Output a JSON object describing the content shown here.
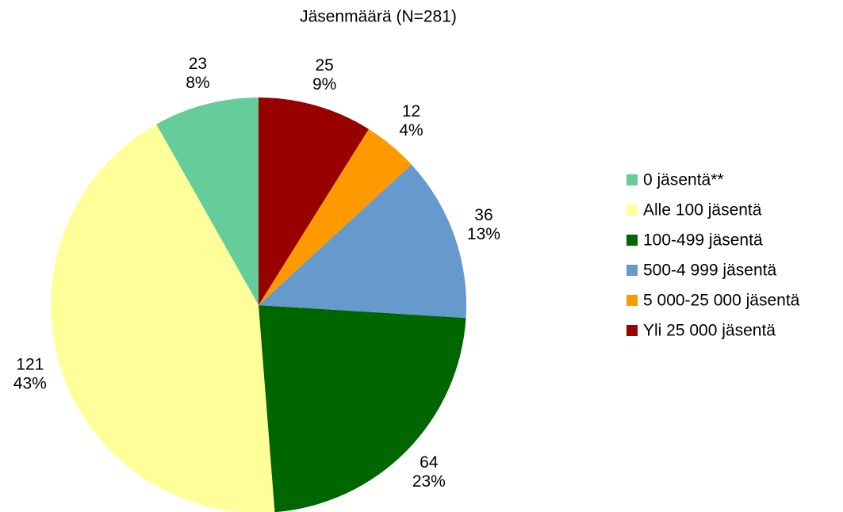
{
  "chart_data": {
    "type": "pie",
    "title": "Jäsenmäärä (N=281)",
    "categories": [
      "0 jäsentä**",
      "Alle 100 jäsentä",
      "100-499 jäsentä",
      "500-4 999 jäsentä",
      "5 000-25 000 jäsentä",
      "Yli 25 000 jäsentä"
    ],
    "values": [
      23,
      121,
      64,
      36,
      12,
      25
    ],
    "percent_labels": [
      "8%",
      "43%",
      "23%",
      "13%",
      "4%",
      "9%"
    ],
    "colors": [
      "#66cc99",
      "#ffff99",
      "#006600",
      "#6699cc",
      "#ff9900",
      "#990000"
    ],
    "legend": "right"
  }
}
